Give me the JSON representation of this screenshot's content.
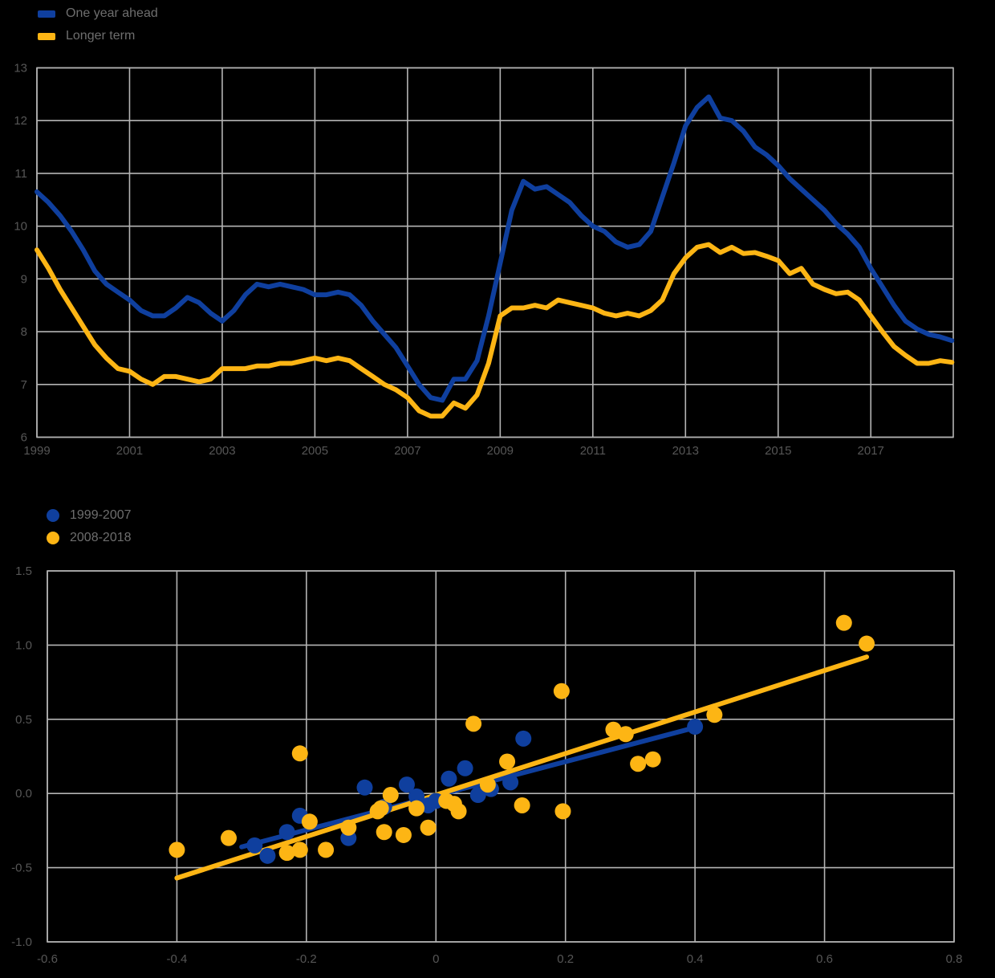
{
  "colors": {
    "blue": "#0f3f9e",
    "yellow": "#fdb514",
    "grid": "#b4b4b4",
    "text": "#565656",
    "legend_text": "#6e6e6e",
    "background": "#000000"
  },
  "chart_data": [
    {
      "type": "line",
      "title": "",
      "x_start": 1999,
      "x_step": 0.25,
      "xlim": [
        1999,
        2018.78
      ],
      "ylim": [
        6,
        13
      ],
      "grid": true,
      "legend_position": "top-left",
      "xtick_values": [
        1999,
        2001,
        2003,
        2005,
        2007,
        2009,
        2011,
        2013,
        2015,
        2017
      ],
      "xtick_labels": [
        "1999",
        "2001",
        "2003",
        "2005",
        "2007",
        "2009",
        "2011",
        "2013",
        "2015",
        "2017"
      ],
      "ytick_values": [
        6,
        7,
        8,
        9,
        10,
        11,
        12,
        13
      ],
      "ytick_labels": [
        "6",
        "7",
        "8",
        "9",
        "10",
        "11",
        "12",
        "13"
      ],
      "series": [
        {
          "name": "One year ahead",
          "color_key": "blue",
          "values": [
            10.65,
            10.45,
            10.2,
            9.9,
            9.55,
            9.15,
            8.9,
            8.75,
            8.6,
            8.4,
            8.3,
            8.3,
            8.45,
            8.65,
            8.55,
            8.35,
            8.2,
            8.4,
            8.7,
            8.9,
            8.85,
            8.9,
            8.85,
            8.8,
            8.7,
            8.7,
            8.75,
            8.7,
            8.5,
            8.2,
            7.95,
            7.7,
            7.35,
            7.0,
            6.75,
            6.7,
            7.1,
            7.1,
            7.45,
            8.3,
            9.3,
            10.3,
            10.85,
            10.7,
            10.75,
            10.6,
            10.45,
            10.2,
            10.0,
            9.9,
            9.7,
            9.6,
            9.65,
            9.9,
            10.55,
            11.2,
            11.9,
            12.25,
            12.45,
            12.05,
            12.0,
            11.8,
            11.5,
            11.35,
            11.15,
            10.9,
            10.7,
            10.5,
            10.3,
            10.05,
            9.85,
            9.6,
            9.2,
            8.85,
            8.5,
            8.2,
            8.05,
            7.95,
            7.9,
            7.83
          ]
        },
        {
          "name": "Longer term",
          "color_key": "yellow",
          "values": [
            9.55,
            9.2,
            8.8,
            8.45,
            8.1,
            7.75,
            7.5,
            7.3,
            7.25,
            7.1,
            7.0,
            7.15,
            7.15,
            7.1,
            7.05,
            7.1,
            7.3,
            7.3,
            7.3,
            7.35,
            7.35,
            7.4,
            7.4,
            7.45,
            7.5,
            7.45,
            7.5,
            7.45,
            7.3,
            7.15,
            7.0,
            6.9,
            6.75,
            6.5,
            6.4,
            6.4,
            6.65,
            6.55,
            6.8,
            7.4,
            8.3,
            8.45,
            8.45,
            8.5,
            8.45,
            8.6,
            8.55,
            8.5,
            8.45,
            8.35,
            8.3,
            8.35,
            8.3,
            8.4,
            8.6,
            9.1,
            9.4,
            9.6,
            9.65,
            9.5,
            9.6,
            9.48,
            9.5,
            9.43,
            9.35,
            9.1,
            9.2,
            8.9,
            8.8,
            8.72,
            8.75,
            8.6,
            8.3,
            8.0,
            7.72,
            7.55,
            7.4,
            7.4,
            7.45,
            7.42
          ]
        }
      ]
    },
    {
      "type": "scatter",
      "title": "",
      "xlim": [
        -0.6,
        0.8
      ],
      "ylim": [
        -1.0,
        1.5
      ],
      "grid": true,
      "legend_position": "top-left",
      "marker_radius": 10,
      "xtick_values": [
        -0.6,
        -0.4,
        -0.2,
        0,
        0.2,
        0.4,
        0.6,
        0.8
      ],
      "xtick_labels": [
        "-0.6",
        "-0.4",
        "-0.2",
        "0",
        "0.2",
        "0.4",
        "0.6",
        "0.8"
      ],
      "ytick_values": [
        -1.0,
        -0.5,
        0.0,
        0.5,
        1.0,
        1.5
      ],
      "ytick_labels": [
        "-1.0",
        "-0.5",
        "0.0",
        "0.5",
        "1.0",
        "1.5"
      ],
      "series": [
        {
          "name": "1999-2007",
          "color_key": "blue",
          "trend": [
            [
              -0.3,
              -0.36
            ],
            [
              0.405,
              0.45
            ]
          ],
          "points": [
            [
              -0.28,
              -0.35
            ],
            [
              -0.26,
              -0.42
            ],
            [
              -0.23,
              -0.26
            ],
            [
              -0.21,
              -0.15
            ],
            [
              -0.135,
              -0.3
            ],
            [
              -0.11,
              0.04
            ],
            [
              -0.08,
              -0.09
            ],
            [
              -0.045,
              0.06
            ],
            [
              -0.03,
              -0.02
            ],
            [
              -0.012,
              -0.08
            ],
            [
              0.0,
              -0.05
            ],
            [
              0.02,
              0.1
            ],
            [
              0.045,
              0.17
            ],
            [
              0.065,
              -0.01
            ],
            [
              0.085,
              0.03
            ],
            [
              0.115,
              0.075
            ],
            [
              0.135,
              0.37
            ],
            [
              0.4,
              0.45
            ]
          ]
        },
        {
          "name": "2008-2018",
          "color_key": "yellow",
          "trend": [
            [
              -0.4,
              -0.57
            ],
            [
              0.665,
              0.92
            ]
          ],
          "points": [
            [
              -0.4,
              -0.38
            ],
            [
              -0.32,
              -0.3
            ],
            [
              -0.23,
              -0.4
            ],
            [
              -0.21,
              -0.38
            ],
            [
              -0.21,
              0.27
            ],
            [
              -0.195,
              -0.19
            ],
            [
              -0.17,
              -0.38
            ],
            [
              -0.135,
              -0.23
            ],
            [
              -0.09,
              -0.12
            ],
            [
              -0.085,
              -0.1
            ],
            [
              -0.08,
              -0.26
            ],
            [
              -0.07,
              -0.01
            ],
            [
              -0.05,
              -0.28
            ],
            [
              -0.03,
              -0.1
            ],
            [
              -0.012,
              -0.23
            ],
            [
              0.016,
              -0.05
            ],
            [
              0.028,
              -0.07
            ],
            [
              0.035,
              -0.12
            ],
            [
              0.058,
              0.47
            ],
            [
              0.08,
              0.06
            ],
            [
              0.11,
              0.215
            ],
            [
              0.133,
              -0.08
            ],
            [
              0.194,
              0.69
            ],
            [
              0.196,
              -0.12
            ],
            [
              0.274,
              0.43
            ],
            [
              0.293,
              0.4
            ],
            [
              0.312,
              0.2
            ],
            [
              0.335,
              0.23
            ],
            [
              0.43,
              0.53
            ],
            [
              0.63,
              1.15
            ],
            [
              0.665,
              1.01
            ]
          ]
        }
      ]
    }
  ]
}
